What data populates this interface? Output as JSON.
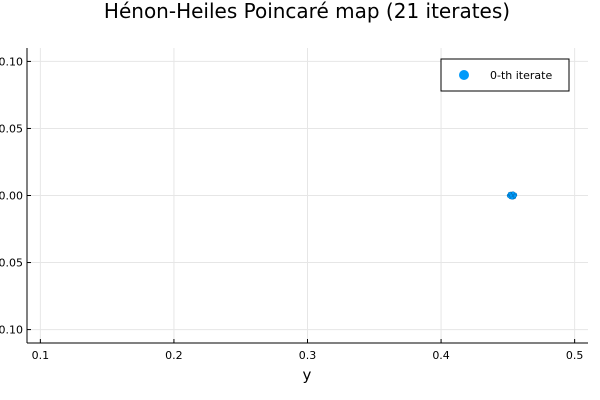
{
  "chart_data": {
    "type": "scatter",
    "title": "Hénon-Heiles Poincaré map (21 iterates)",
    "xlabel": "y",
    "ylabel": "",
    "xlim": [
      0.09,
      0.51
    ],
    "ylim": [
      -0.11,
      0.11
    ],
    "x_ticks": [
      0.1,
      0.2,
      0.3,
      0.4,
      0.5
    ],
    "x_tick_labels": [
      "0.1",
      "0.2",
      "0.3",
      "0.4",
      "0.5"
    ],
    "y_ticks": [
      -0.1,
      -0.05,
      0.0,
      0.05,
      0.1
    ],
    "y_tick_labels": [
      "-0.10",
      "-0.05",
      "0.00",
      "0.05",
      "0.10"
    ],
    "grid": true,
    "legend_position": "top-right",
    "series": [
      {
        "name": "0-th iterate",
        "color": "#009AFA",
        "x": [
          0.4505,
          0.4512,
          0.4518,
          0.4523,
          0.4529,
          0.4534,
          0.454,
          0.4546,
          0.4551,
          0.4557,
          0.4508,
          0.4515,
          0.4521,
          0.4527,
          0.4533,
          0.4538,
          0.4544,
          0.4549,
          0.4555,
          0.453,
          0.4536,
          0.4519,
          0.4542,
          0.4526,
          0.4547,
          0.4514,
          0.4553,
          0.4532,
          0.4539,
          0.4524
        ],
        "y": [
          0.0,
          0.0011,
          -0.0009,
          0.0016,
          -0.0014,
          0.0006,
          -0.0017,
          0.0012,
          -0.0004,
          0.0003,
          -0.0006,
          0.0008,
          0.0002,
          -0.0012,
          0.0015,
          -0.0007,
          0.0004,
          -0.0013,
          0.0009,
          0.0001,
          -0.0003,
          -0.0015,
          0.0013,
          0.0005,
          -0.001,
          0.0014,
          -0.0002,
          -0.0018,
          0.0018,
          0.0
        ]
      }
    ]
  }
}
